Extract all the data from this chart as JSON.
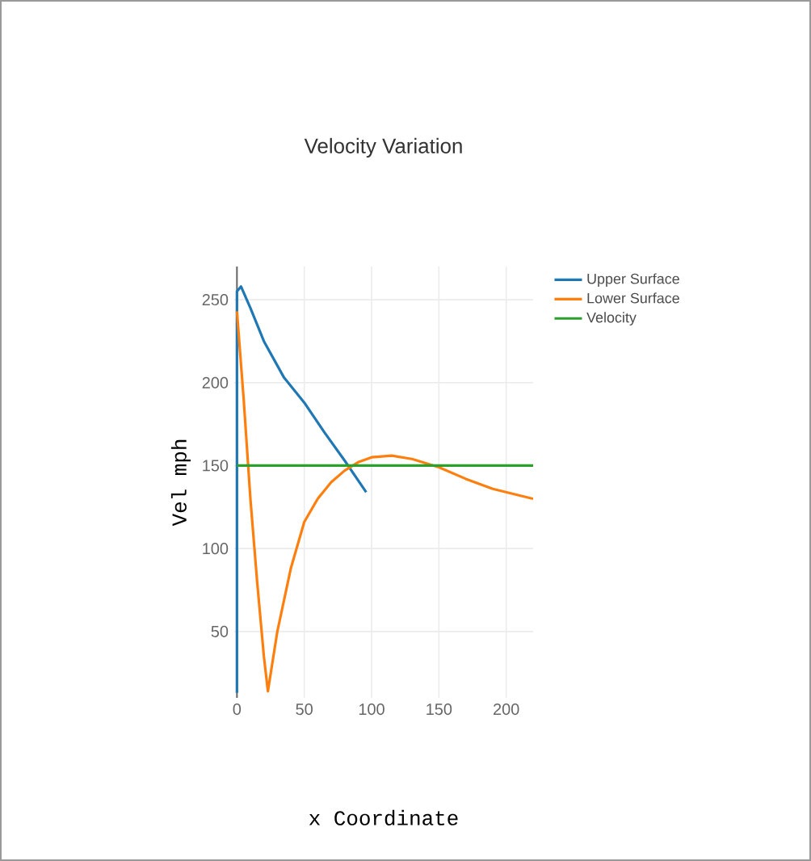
{
  "chart_data": {
    "type": "line",
    "title": "Velocity Variation",
    "xlabel": "x Coordinate",
    "ylabel": "Vel mph",
    "xlim": [
      -2,
      220
    ],
    "ylim": [
      10,
      270
    ],
    "xticks": [
      0,
      50,
      100,
      150,
      200
    ],
    "yticks": [
      50,
      100,
      150,
      200,
      250
    ],
    "grid": true,
    "legend": "top right",
    "marker": "none",
    "line_style": "solid",
    "series": [
      {
        "name": "Upper Surface",
        "color": "#1f77b4",
        "x": [
          0,
          0,
          3,
          10,
          20,
          35,
          50,
          65,
          80,
          96
        ],
        "values": [
          13,
          255,
          258,
          245,
          225,
          203,
          188,
          170,
          153,
          134
        ]
      },
      {
        "name": "Lower Surface",
        "color": "#ff7f0e",
        "x": [
          0,
          5,
          10,
          15,
          20,
          23,
          30,
          40,
          50,
          60,
          70,
          80,
          90,
          100,
          115,
          130,
          150,
          170,
          190,
          210,
          220
        ],
        "values": [
          243,
          190,
          130,
          80,
          35,
          14,
          50,
          88,
          116,
          130,
          140,
          147,
          152,
          155,
          156,
          154,
          149,
          142,
          136,
          132,
          130
        ]
      },
      {
        "name": "Velocity",
        "color": "#2ca02c",
        "x": [
          0,
          220
        ],
        "values": [
          150,
          150
        ]
      }
    ]
  }
}
